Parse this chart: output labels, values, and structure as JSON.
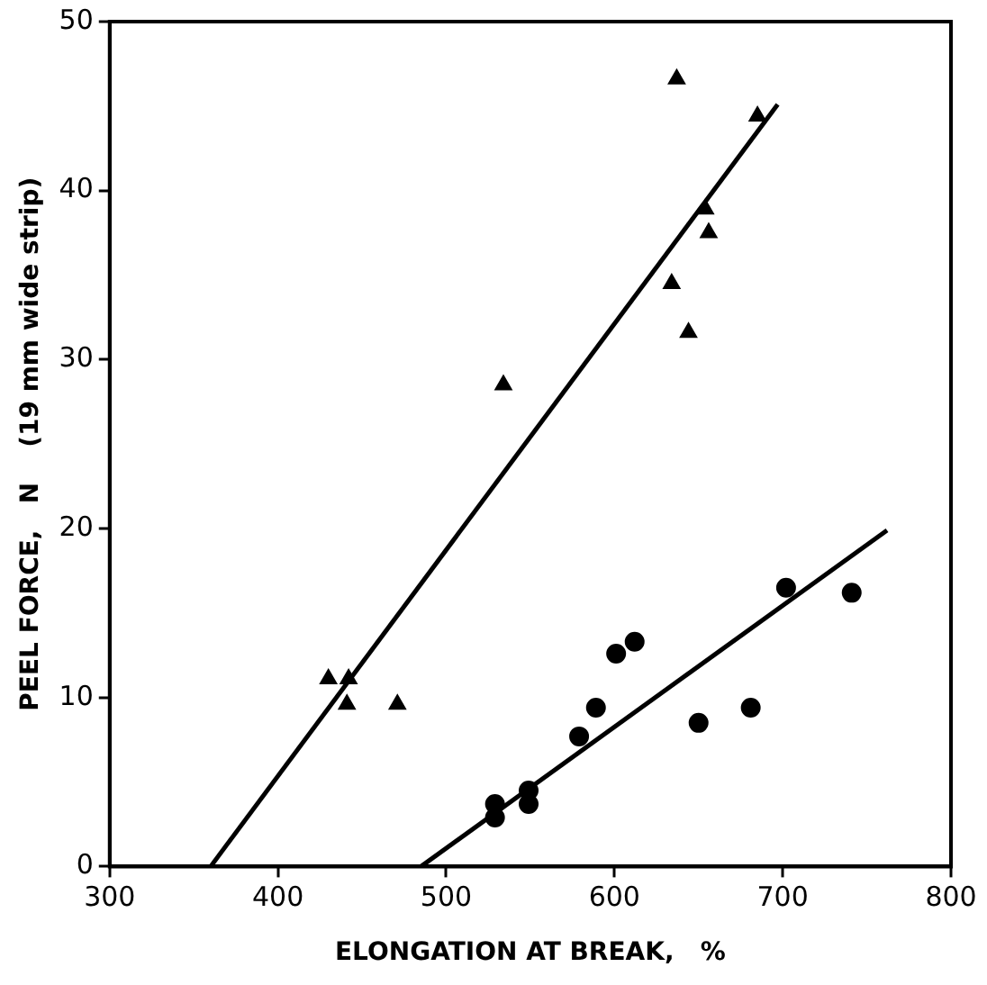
{
  "chart_data": {
    "type": "scatter",
    "xlabel": "ELONGATION AT BREAK,   %",
    "ylabel": "PEEL FORCE,   N    (19 mm wide strip)",
    "xlim": [
      300,
      800
    ],
    "xticks": [
      300,
      400,
      500,
      600,
      700,
      800
    ],
    "ylim": [
      0,
      50
    ],
    "yticks": [
      0,
      10,
      20,
      30,
      40,
      50
    ],
    "grid": false,
    "legend": false,
    "series": [
      {
        "type": "scatter",
        "marker": "triangle",
        "color": "#000000",
        "x": [
          430,
          442,
          441,
          471,
          534,
          634,
          644,
          654,
          656,
          637,
          685
        ],
        "values": [
          11.1,
          11.1,
          9.6,
          9.6,
          28.5,
          34.5,
          31.6,
          38.9,
          37.5,
          46.6,
          44.4
        ]
      },
      {
        "type": "scatter",
        "marker": "circle",
        "color": "#000000",
        "x": [
          529,
          529,
          549,
          549,
          579,
          589,
          601,
          612,
          650,
          681,
          702,
          741
        ],
        "values": [
          3.7,
          2.9,
          4.5,
          3.7,
          7.7,
          9.4,
          12.6,
          13.3,
          8.5,
          9.4,
          16.5,
          16.2
        ]
      },
      {
        "type": "line",
        "marker": "none",
        "line_style": "solid",
        "color": "#000000",
        "x": [
          360,
          697
        ],
        "values": [
          0,
          45.1
        ]
      },
      {
        "type": "line",
        "marker": "none",
        "line_style": "solid",
        "color": "#000000",
        "x": [
          485,
          762
        ],
        "values": [
          0,
          19.9
        ]
      }
    ]
  }
}
